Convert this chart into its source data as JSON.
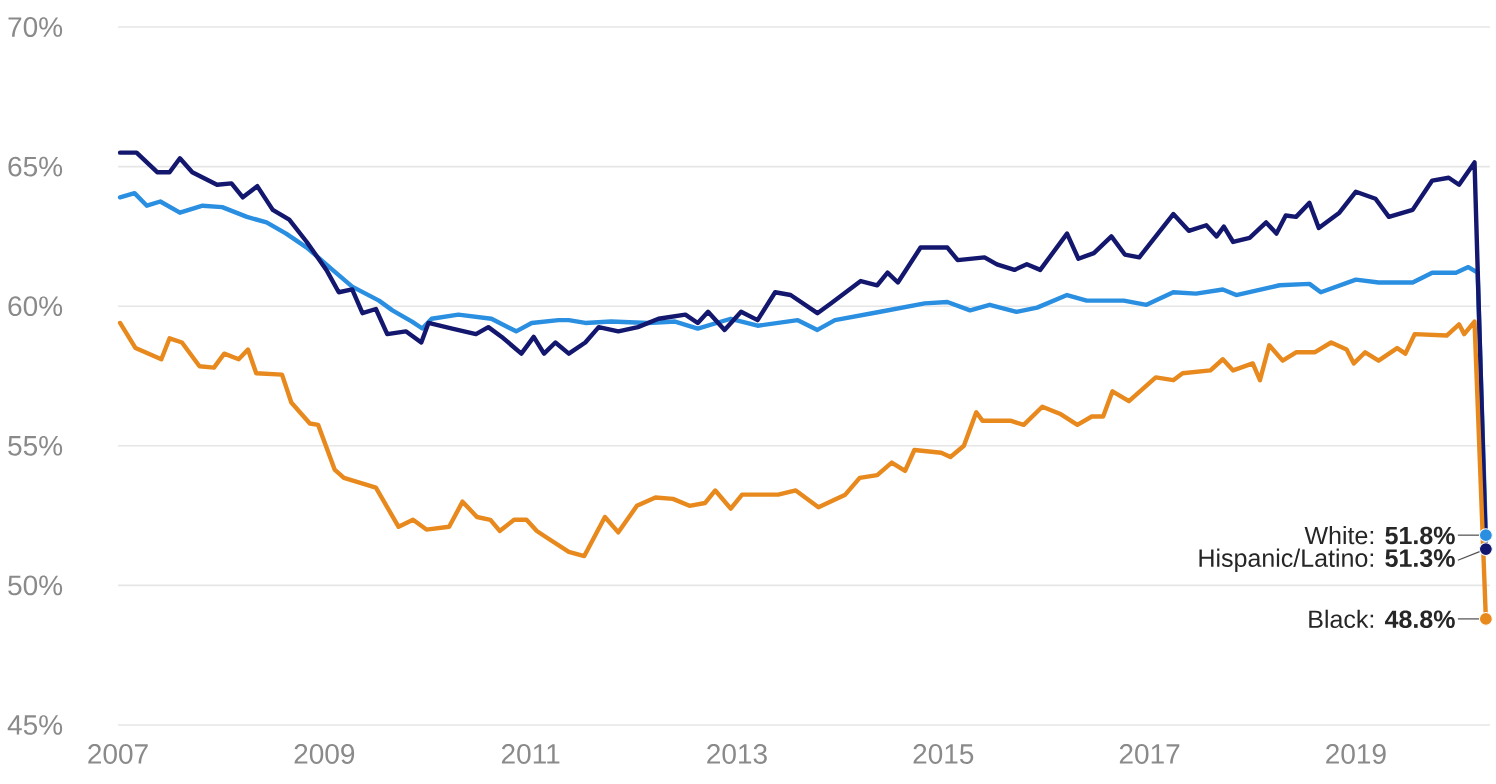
{
  "chart_data": {
    "type": "line",
    "xlim": [
      2007,
      2020.3
    ],
    "ylim": [
      45,
      70
    ],
    "xticks": [
      2007,
      2009,
      2011,
      2013,
      2015,
      2017,
      2019
    ],
    "yticks": [
      {
        "value": 45,
        "label": "45%"
      },
      {
        "value": 50,
        "label": "50%"
      },
      {
        "value": 55,
        "label": "55%"
      },
      {
        "value": 60,
        "label": "60%"
      },
      {
        "value": 65,
        "label": "65%"
      },
      {
        "value": 70,
        "label": "70%"
      }
    ],
    "grid": "y",
    "line_style": "solid",
    "series": [
      {
        "color": "#2a8fe0",
        "x": [
          2007.02,
          2007.16,
          2007.28,
          2007.41,
          2007.6,
          2007.82,
          2008.01,
          2008.25,
          2008.44,
          2008.63,
          2008.83,
          2009.08,
          2009.27,
          2009.53,
          2009.66,
          2009.85,
          2009.95,
          2010.04,
          2010.3,
          2010.62,
          2010.86,
          2011.01,
          2011.27,
          2011.37,
          2011.53,
          2011.78,
          2012.14,
          2012.4,
          2012.62,
          2012.94,
          2013.2,
          2013.59,
          2013.78,
          2013.95,
          2014.39,
          2014.82,
          2015.04,
          2015.26,
          2015.45,
          2015.71,
          2015.91,
          2016.2,
          2016.39,
          2016.75,
          2016.97,
          2017.23,
          2017.45,
          2017.71,
          2017.84,
          2018.26,
          2018.55,
          2018.66,
          2019.0,
          2019.22,
          2019.55,
          2019.74,
          2019.97,
          2020.09,
          2020.18,
          2020.26
        ],
        "values": [
          63.9,
          64.05,
          63.6,
          63.75,
          63.35,
          63.6,
          63.55,
          63.2,
          63.0,
          62.6,
          62.1,
          61.3,
          60.7,
          60.2,
          59.85,
          59.45,
          59.2,
          59.55,
          59.7,
          59.55,
          59.1,
          59.4,
          59.5,
          59.5,
          59.4,
          59.45,
          59.4,
          59.45,
          59.2,
          59.55,
          59.3,
          59.5,
          59.15,
          59.5,
          59.8,
          60.1,
          60.15,
          59.85,
          60.05,
          59.8,
          59.95,
          60.4,
          60.2,
          60.2,
          60.05,
          60.5,
          60.45,
          60.6,
          60.4,
          60.75,
          60.8,
          60.5,
          60.95,
          60.85,
          60.85,
          61.2,
          61.2,
          61.4,
          61.2,
          51.8
        ]
      },
      {
        "color": "#14176e",
        "x": [
          2007.02,
          2007.18,
          2007.38,
          2007.5,
          2007.6,
          2007.72,
          2007.96,
          2008.1,
          2008.21,
          2008.35,
          2008.5,
          2008.66,
          2008.83,
          2009.02,
          2009.14,
          2009.27,
          2009.37,
          2009.5,
          2009.61,
          2009.79,
          2009.94,
          2010.01,
          2010.24,
          2010.47,
          2010.59,
          2010.72,
          2010.91,
          2011.03,
          2011.13,
          2011.24,
          2011.37,
          2011.53,
          2011.66,
          2011.85,
          2012.04,
          2012.24,
          2012.5,
          2012.62,
          2012.72,
          2012.88,
          2013.04,
          2013.2,
          2013.37,
          2013.52,
          2013.78,
          2013.91,
          2014.2,
          2014.36,
          2014.46,
          2014.56,
          2014.78,
          2015.04,
          2015.14,
          2015.4,
          2015.52,
          2015.69,
          2015.81,
          2015.94,
          2016.2,
          2016.31,
          2016.46,
          2016.63,
          2016.76,
          2016.9,
          2017.23,
          2017.38,
          2017.55,
          2017.65,
          2017.72,
          2017.81,
          2017.97,
          2018.13,
          2018.23,
          2018.32,
          2018.42,
          2018.55,
          2018.64,
          2018.84,
          2019.0,
          2019.19,
          2019.32,
          2019.55,
          2019.74,
          2019.9,
          2020.0,
          2020.15,
          2020.26
        ],
        "values": [
          65.5,
          65.5,
          64.8,
          64.8,
          65.3,
          64.8,
          64.35,
          64.4,
          63.9,
          64.3,
          63.45,
          63.1,
          62.3,
          61.3,
          60.5,
          60.6,
          59.75,
          59.9,
          59.0,
          59.1,
          58.7,
          59.4,
          59.2,
          59.0,
          59.25,
          58.9,
          58.3,
          58.9,
          58.3,
          58.7,
          58.3,
          58.7,
          59.25,
          59.1,
          59.25,
          59.55,
          59.7,
          59.4,
          59.8,
          59.15,
          59.8,
          59.5,
          60.5,
          60.4,
          59.75,
          60.1,
          60.9,
          60.75,
          61.2,
          60.85,
          62.1,
          62.1,
          61.65,
          61.75,
          61.5,
          61.3,
          61.5,
          61.3,
          62.6,
          61.7,
          61.9,
          62.5,
          61.85,
          61.75,
          63.3,
          62.7,
          62.9,
          62.5,
          62.85,
          62.3,
          62.45,
          63.0,
          62.6,
          63.25,
          63.2,
          63.7,
          62.8,
          63.35,
          64.1,
          63.85,
          63.2,
          63.45,
          64.5,
          64.6,
          64.35,
          65.15,
          51.3
        ]
      },
      {
        "color": "#e8891e",
        "x": [
          2007.02,
          2007.17,
          2007.42,
          2007.5,
          2007.62,
          2007.79,
          2007.93,
          2008.03,
          2008.17,
          2008.26,
          2008.34,
          2008.59,
          2008.68,
          2008.86,
          2008.94,
          2009.1,
          2009.19,
          2009.5,
          2009.72,
          2009.86,
          2009.99,
          2010.21,
          2010.34,
          2010.48,
          2010.61,
          2010.7,
          2010.84,
          2010.96,
          2011.06,
          2011.14,
          2011.37,
          2011.52,
          2011.72,
          2011.85,
          2012.03,
          2012.21,
          2012.38,
          2012.54,
          2012.69,
          2012.79,
          2012.94,
          2013.05,
          2013.4,
          2013.57,
          2013.79,
          2014.05,
          2014.19,
          2014.36,
          2014.5,
          2014.63,
          2014.72,
          2014.98,
          2015.07,
          2015.2,
          2015.32,
          2015.38,
          2015.65,
          2015.78,
          2015.96,
          2016.13,
          2016.3,
          2016.44,
          2016.55,
          2016.64,
          2016.8,
          2017.06,
          2017.23,
          2017.32,
          2017.59,
          2017.71,
          2017.81,
          2018.0,
          2018.07,
          2018.16,
          2018.29,
          2018.42,
          2018.6,
          2018.76,
          2018.91,
          2018.98,
          2019.09,
          2019.22,
          2019.4,
          2019.48,
          2019.57,
          2019.88,
          2020.0,
          2020.05,
          2020.15,
          2020.26
        ],
        "values": [
          59.4,
          58.5,
          58.1,
          58.85,
          58.7,
          57.85,
          57.8,
          58.3,
          58.1,
          58.45,
          57.6,
          57.55,
          56.55,
          55.8,
          55.75,
          54.15,
          53.85,
          53.5,
          52.1,
          52.35,
          52.0,
          52.1,
          53.0,
          52.45,
          52.35,
          51.95,
          52.35,
          52.35,
          51.95,
          51.75,
          51.2,
          51.05,
          52.45,
          51.9,
          52.85,
          53.15,
          53.1,
          52.85,
          52.95,
          53.4,
          52.75,
          53.25,
          53.25,
          53.4,
          52.8,
          53.25,
          53.85,
          53.95,
          54.4,
          54.1,
          54.85,
          54.75,
          54.6,
          55.0,
          56.2,
          55.9,
          55.9,
          55.75,
          56.4,
          56.15,
          55.75,
          56.05,
          56.05,
          56.95,
          56.6,
          57.45,
          57.35,
          57.6,
          57.7,
          58.1,
          57.7,
          57.95,
          57.35,
          58.6,
          58.05,
          58.35,
          58.35,
          58.7,
          58.45,
          57.95,
          58.35,
          58.05,
          58.5,
          58.3,
          59.0,
          58.95,
          59.35,
          59.0,
          59.45,
          48.8
        ]
      }
    ],
    "annotations": [
      "White: **51.8%**",
      "Hispanic/Latino: **51.3%**",
      "Black: **48.8%**"
    ]
  }
}
